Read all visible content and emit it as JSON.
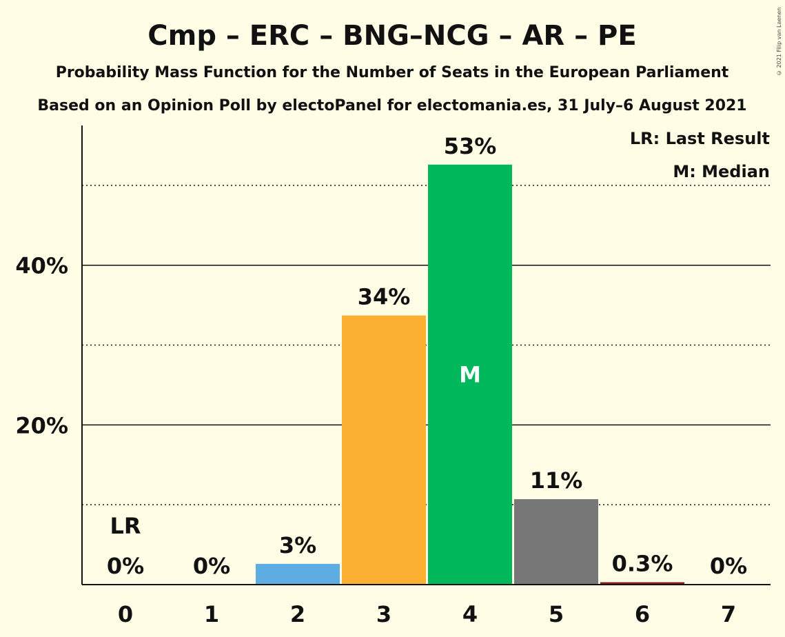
{
  "chart_data": {
    "type": "bar",
    "title": "Cmp – ERC – BNG–NCG – AR – PE",
    "subtitle": "Probability Mass Function for the Number of Seats in the European Parliament",
    "subtitle2": "Based on an Opinion Poll by electoPanel for electomania.es, 31 July–6 August 2021",
    "categories": [
      "0",
      "1",
      "2",
      "3",
      "4",
      "5",
      "6",
      "7"
    ],
    "values": [
      0,
      0,
      2.6,
      33.7,
      52.6,
      10.7,
      0.3,
      0
    ],
    "data_labels": [
      "0%",
      "0%",
      "3%",
      "34%",
      "53%",
      "11%",
      "0.3%",
      "0%"
    ],
    "colors": [
      "#FFFDE6",
      "#FFFDE6",
      "#5DADE2",
      "#FBB034",
      "#00B85C",
      "#777777",
      "#8B1A1A",
      "#FFFDE6"
    ],
    "y_ticks": [
      {
        "value": 20,
        "label": "20%"
      },
      {
        "value": 40,
        "label": "40%"
      }
    ],
    "y_minor_dotted": [
      10,
      30,
      50
    ],
    "ylim": [
      0,
      57.5
    ],
    "last_result_index": 0,
    "last_result_label": "LR",
    "median_index": 4,
    "median_label": "M",
    "legend": [
      "LR: Last Result",
      "M: Median"
    ],
    "legend_position": "top-right"
  },
  "copyright": "© 2021 Filip van Laenen"
}
